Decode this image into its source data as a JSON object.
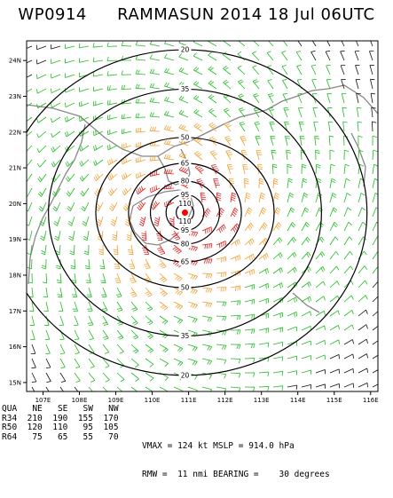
{
  "title": {
    "storm_id": "WP0914",
    "storm_info": "RAMMASUN 2014 18 Jul 06UTC"
  },
  "map": {
    "lat_labels": [
      "24N",
      "23N",
      "22N",
      "21N",
      "20N",
      "19N",
      "18N",
      "17N",
      "16N",
      "15N"
    ],
    "lon_labels": [
      "107E",
      "108E",
      "109E",
      "110E",
      "111E",
      "112E",
      "113E",
      "114E",
      "115E",
      "116E"
    ],
    "lat_range": [
      14.75,
      24.55
    ],
    "lon_range": [
      106.55,
      116.2
    ],
    "storm_center": {
      "lon": 110.9,
      "lat": 19.75
    },
    "pressure_contours": [
      {
        "label": "20",
        "rx_deg": 5.0,
        "ry_deg": 4.55
      },
      {
        "label": "35",
        "rx_deg": 3.75,
        "ry_deg": 3.45
      },
      {
        "label": "50",
        "rx_deg": 2.45,
        "ry_deg": 2.1
      },
      {
        "label": "65",
        "rx_deg": 1.55,
        "ry_deg": 1.38
      },
      {
        "label": "80",
        "rx_deg": 0.95,
        "ry_deg": 0.88
      },
      {
        "label": "95",
        "rx_deg": 0.52,
        "ry_deg": 0.5
      },
      {
        "label": "110",
        "rx_deg": 0.24,
        "ry_deg": 0.25
      }
    ],
    "wind_color_bands": {
      "r34": "#22bb22",
      "r50": "#f0a030",
      "r64": "#e02020",
      "below": "#111111"
    },
    "center_marker_color": "#ff0000"
  },
  "quadrant_table": {
    "header": [
      "QUA",
      "NE",
      "SE",
      "SW",
      "NW"
    ],
    "rows": [
      [
        "R34",
        "210",
        "190",
        "155",
        "170"
      ],
      [
        "R50",
        "120",
        "110",
        "95",
        "105"
      ],
      [
        "R64",
        "75",
        "65",
        "55",
        "70"
      ]
    ]
  },
  "stats": {
    "vmax_label": "VMAX =",
    "vmax_value": "124 kt",
    "mslp_label": "MSLP =",
    "mslp_value": "914.0 hPa",
    "rmw_label": "RMW =",
    "rmw_value": "11 nmi",
    "bearing_label": "BEARING =",
    "bearing_value": "30 degrees"
  }
}
